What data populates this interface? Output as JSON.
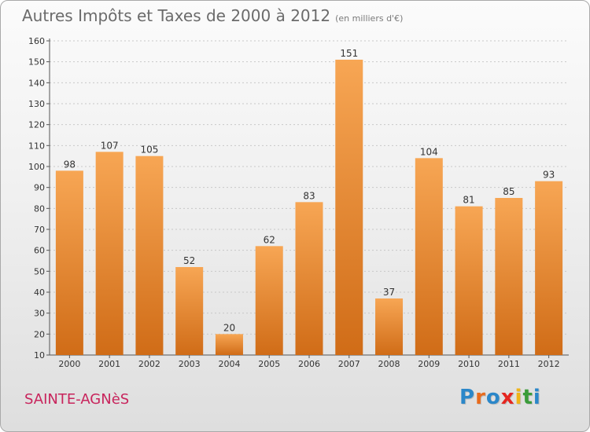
{
  "title": {
    "main": "Autres Impôts et Taxes de 2000 à 2012",
    "unit": "(en milliers d'€)"
  },
  "commune": "SAINTE-AGNèS",
  "logo": {
    "text": "Proxiti",
    "letters": [
      {
        "ch": "P",
        "color": "#2b87c9"
      },
      {
        "ch": "r",
        "color": "#e86b1d"
      },
      {
        "ch": "o",
        "color": "#2b87c9"
      },
      {
        "ch": "x",
        "color": "#e52620"
      },
      {
        "ch": "i",
        "color": "#f0b418"
      },
      {
        "ch": "t",
        "color": "#3a9c3a"
      },
      {
        "ch": "i",
        "color": "#2b87c9"
      }
    ]
  },
  "colors": {
    "bar_top": "#f7a654",
    "bar_bottom": "#d06c17",
    "axis": "#555555",
    "tick_text": "#333333",
    "grid": "#c8c8c8"
  },
  "chart_data": {
    "type": "bar",
    "categories": [
      "2000",
      "2001",
      "2002",
      "2003",
      "2004",
      "2005",
      "2006",
      "2007",
      "2008",
      "2009",
      "2010",
      "2011",
      "2012"
    ],
    "values": [
      98,
      107,
      105,
      52,
      20,
      62,
      83,
      151,
      37,
      104,
      81,
      85,
      93
    ],
    "ylim": [
      10,
      160
    ],
    "yticks": [
      10,
      20,
      30,
      40,
      50,
      60,
      70,
      80,
      90,
      100,
      110,
      120,
      130,
      140,
      150,
      160
    ],
    "grid": "horizontal dashed",
    "legend": "none"
  }
}
